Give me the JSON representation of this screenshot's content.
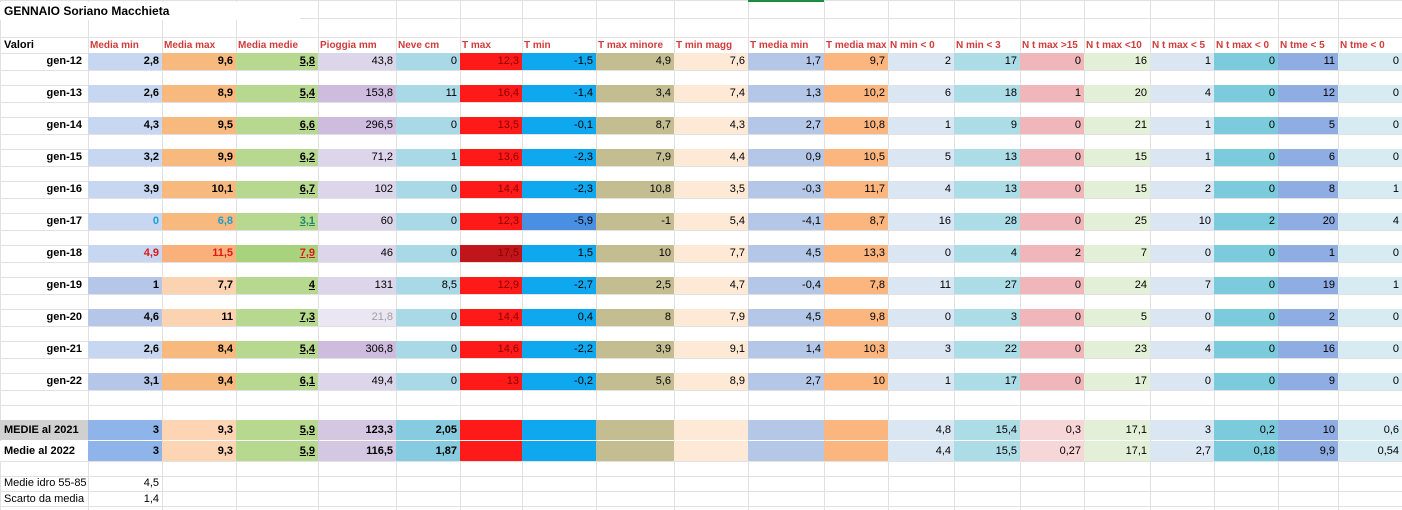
{
  "sheet": {
    "title": "GENNAIO  Soriano Macchieta",
    "header_label": "Valori",
    "columns": [
      {
        "label": "Media min",
        "color": "#c7d7f1"
      },
      {
        "label": "Media max",
        "color": "#f7b97e"
      },
      {
        "label": "Media medie",
        "color": "#b7d98f"
      },
      {
        "label": "Pioggia mm",
        "color": "#ddd6ea"
      },
      {
        "label": "Neve cm",
        "color": "#a9d8e6"
      },
      {
        "label": "T max",
        "color": "#ff1a1a"
      },
      {
        "label": "T min",
        "color": "#0fa8ee"
      },
      {
        "label": "T max minore",
        "color": "#c4bd92"
      },
      {
        "label": "T min magg",
        "color": "#fde9d6"
      },
      {
        "label": "T media min",
        "color": "#b5c7e6"
      },
      {
        "label": "T media max",
        "color": "#fbb57f"
      },
      {
        "label": "N min < 0",
        "color": "#dbe6f3"
      },
      {
        "label": "N min < 3",
        "color": "#acdce6"
      },
      {
        "label": "N t max >15",
        "color": "#efb7b9"
      },
      {
        "label": "N t max <10",
        "color": "#e3efd6"
      },
      {
        "label": "N t max < 5",
        "color": "#dbe6f3"
      },
      {
        "label": "N t max < 0",
        "color": "#7ccbdc"
      },
      {
        "label": "N tme < 5",
        "color": "#8fade2"
      },
      {
        "label": "N tme < 0",
        "color": "#d6ecf2"
      }
    ],
    "rows": [
      {
        "label": "gen-12",
        "values": [
          "2,8",
          "9,6",
          "5,8",
          "43,8",
          "0",
          "12,3",
          "-1,5",
          "4,9",
          "7,6",
          "1,7",
          "9,7",
          "2",
          "17",
          "0",
          "16",
          "1",
          "0",
          "11",
          "0"
        ]
      },
      {
        "label": "gen-13",
        "values": [
          "2,6",
          "8,9",
          "5,4",
          "153,8",
          "11",
          "16,4",
          "-1,4",
          "3,4",
          "7,4",
          "1,3",
          "10,2",
          "6",
          "18",
          "1",
          "20",
          "4",
          "0",
          "12",
          "0"
        ]
      },
      {
        "label": "gen-14",
        "values": [
          "4,3",
          "9,5",
          "6,6",
          "296,5",
          "0",
          "13,5",
          "-0,1",
          "8,7",
          "4,3",
          "2,7",
          "10,8",
          "1",
          "9",
          "0",
          "21",
          "1",
          "0",
          "5",
          "0"
        ]
      },
      {
        "label": "gen-15",
        "values": [
          "3,2",
          "9,9",
          "6,2",
          "71,2",
          "1",
          "13,6",
          "-2,3",
          "7,9",
          "4,4",
          "0,9",
          "10,5",
          "5",
          "13",
          "0",
          "15",
          "1",
          "0",
          "6",
          "0"
        ]
      },
      {
        "label": "gen-16",
        "values": [
          "3,9",
          "10,1",
          "6,7",
          "102",
          "0",
          "14,4",
          "-2,3",
          "10,8",
          "3,5",
          "-0,3",
          "11,7",
          "4",
          "13",
          "0",
          "15",
          "2",
          "0",
          "8",
          "1"
        ]
      },
      {
        "label": "gen-17",
        "values": [
          "0",
          "6,8",
          "3,1",
          "60",
          "0",
          "12,3",
          "-5,9",
          "-1",
          "5,4",
          "-4,1",
          "8,7",
          "16",
          "28",
          "0",
          "25",
          "10",
          "2",
          "20",
          "4"
        ]
      },
      {
        "label": "gen-18",
        "values": [
          "4,9",
          "11,5",
          "7,9",
          "46",
          "0",
          "17,5",
          "1,5",
          "10",
          "7,7",
          "4,5",
          "13,3",
          "0",
          "4",
          "2",
          "7",
          "0",
          "0",
          "1",
          "0"
        ]
      },
      {
        "label": "gen-19",
        "values": [
          "1",
          "7,7",
          "4",
          "131",
          "8,5",
          "12,9",
          "-2,7",
          "2,5",
          "4,7",
          "-0,4",
          "7,8",
          "11",
          "27",
          "0",
          "24",
          "7",
          "0",
          "19",
          "1"
        ]
      },
      {
        "label": "gen-20",
        "values": [
          "4,6",
          "11",
          "7,3",
          "21,8",
          "0",
          "14,4",
          "0,4",
          "8",
          "7,9",
          "4,5",
          "9,8",
          "0",
          "3",
          "0",
          "5",
          "0",
          "0",
          "2",
          "0"
        ]
      },
      {
        "label": "gen-21",
        "values": [
          "2,6",
          "8,4",
          "5,4",
          "306,8",
          "0",
          "14,6",
          "-2,2",
          "3,9",
          "9,1",
          "1,4",
          "10,3",
          "3",
          "22",
          "0",
          "23",
          "4",
          "0",
          "16",
          "0"
        ]
      },
      {
        "label": "gen-22",
        "values": [
          "3,1",
          "9,4",
          "6,1",
          "49,4",
          "0",
          "13",
          "-0,2",
          "5,6",
          "8,9",
          "2,7",
          "10",
          "1",
          "17",
          "0",
          "17",
          "0",
          "0",
          "9",
          "0"
        ]
      }
    ],
    "summary": [
      {
        "label": "MEDIE al 2021",
        "values": [
          "3",
          "9,3",
          "5,9",
          "123,3",
          "2,05",
          "",
          "",
          "",
          "",
          "",
          "",
          "4,8",
          "15,4",
          "0,3",
          "17,1",
          "3",
          "0,2",
          "10",
          "0,6"
        ]
      },
      {
        "label": "Medie al 2022",
        "values": [
          "3",
          "9,3",
          "5,9",
          "116,5",
          "1,87",
          "",
          "",
          "",
          "",
          "",
          "",
          "4,4",
          "15,5",
          "0,27",
          "17,1",
          "2,7",
          "0,18",
          "9,9",
          "0,54"
        ]
      }
    ],
    "notes": [
      {
        "label": "Medie idro 55-85",
        "value": "4,5"
      },
      {
        "label": "Scarto da media",
        "value": "1,4"
      }
    ]
  }
}
